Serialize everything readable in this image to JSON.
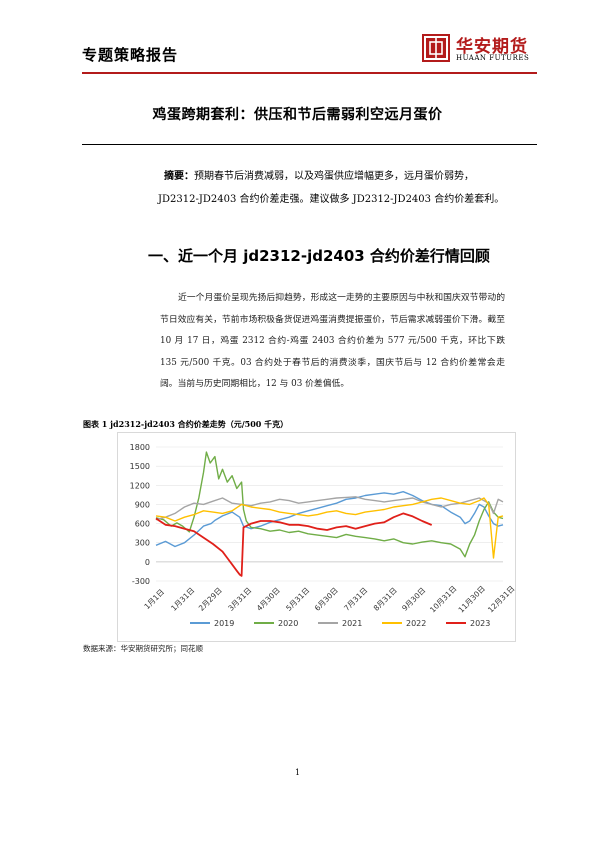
{
  "header": {
    "report_type": "专题策略报告",
    "logo_cn": "华安期货",
    "logo_en": "HUAAN FUTURES",
    "accent_color": "#b31b1b"
  },
  "title": "鸡蛋跨期套利：供压和节后需弱利空远月蛋价",
  "abstract": {
    "label": "摘要：",
    "line1": "预期春节后消费减弱，以及鸡蛋供应增幅更多，远月蛋价弱势，",
    "line2": "JD2312-JD2403 合约价差走强。建议做多 JD2312-JD2403 合约价差套利。"
  },
  "section1": {
    "heading": "一、近一个月 jd2312-jd2403 合约价差行情回顾",
    "paragraph": "近一个月蛋价呈现先扬后抑趋势，形成这一走势的主要原因与中秋和国庆双节带动的节日效应有关，节前市场积极备货促进鸡蛋消费提振蛋价，节后需求减弱蛋价下滑。截至 10 月 17 日，鸡蛋 2312 合约-鸡蛋 2403 合约价差为 577 元/500 千克，环比下跌 135 元/500 千克。03 合约处于春节后的消费淡季，国庆节后与 12 合约价差常会走阔。当前与历史同期相比，12 与 03 价差偏低。"
  },
  "figure": {
    "caption": "图表 1 jd2312-jd2403 合约价差走势（元/500 千克）",
    "source": "数据来源：华安期货研究所；同花顺"
  },
  "chart_data": {
    "type": "line",
    "title": "",
    "xlabel": "",
    "ylabel": "",
    "ylim": [
      -300,
      1800
    ],
    "yticks": [
      -300,
      0,
      300,
      600,
      900,
      1200,
      1500,
      1800
    ],
    "xlim": [
      0,
      365
    ],
    "x_ticks": [
      {
        "label": "1月1日",
        "day": 0
      },
      {
        "label": "1月31日",
        "day": 30
      },
      {
        "label": "2月29日",
        "day": 59
      },
      {
        "label": "3月31日",
        "day": 90
      },
      {
        "label": "4月30日",
        "day": 120
      },
      {
        "label": "5月31日",
        "day": 151
      },
      {
        "label": "6月30日",
        "day": 181
      },
      {
        "label": "7月31日",
        "day": 212
      },
      {
        "label": "8月31日",
        "day": 243
      },
      {
        "label": "9月30日",
        "day": 273
      },
      {
        "label": "10月31日",
        "day": 304
      },
      {
        "label": "11月30日",
        "day": 334
      },
      {
        "label": "12月31日",
        "day": 365
      }
    ],
    "legend_position": "bottom",
    "series": [
      {
        "name": "2019",
        "color": "#5b9bd5",
        "points": [
          [
            0,
            260
          ],
          [
            10,
            320
          ],
          [
            20,
            240
          ],
          [
            30,
            300
          ],
          [
            40,
            420
          ],
          [
            50,
            560
          ],
          [
            58,
            600
          ],
          [
            62,
            650
          ],
          [
            70,
            720
          ],
          [
            80,
            780
          ],
          [
            88,
            700
          ],
          [
            92,
            560
          ],
          [
            100,
            520
          ],
          [
            110,
            560
          ],
          [
            120,
            620
          ],
          [
            130,
            660
          ],
          [
            140,
            700
          ],
          [
            150,
            760
          ],
          [
            160,
            800
          ],
          [
            170,
            840
          ],
          [
            180,
            880
          ],
          [
            190,
            920
          ],
          [
            200,
            980
          ],
          [
            210,
            1000
          ],
          [
            220,
            1040
          ],
          [
            230,
            1060
          ],
          [
            240,
            1080
          ],
          [
            250,
            1060
          ],
          [
            260,
            1100
          ],
          [
            270,
            1040
          ],
          [
            280,
            960
          ],
          [
            290,
            900
          ],
          [
            300,
            880
          ],
          [
            310,
            780
          ],
          [
            320,
            700
          ],
          [
            325,
            600
          ],
          [
            330,
            640
          ],
          [
            335,
            760
          ],
          [
            340,
            900
          ],
          [
            345,
            860
          ],
          [
            350,
            720
          ],
          [
            355,
            600
          ],
          [
            360,
            560
          ],
          [
            365,
            580
          ]
        ]
      },
      {
        "name": "2020",
        "color": "#70ad47",
        "points": [
          [
            0,
            690
          ],
          [
            8,
            660
          ],
          [
            16,
            560
          ],
          [
            22,
            610
          ],
          [
            28,
            560
          ],
          [
            35,
            470
          ],
          [
            40,
            700
          ],
          [
            45,
            1000
          ],
          [
            50,
            1400
          ],
          [
            53,
            1720
          ],
          [
            57,
            1550
          ],
          [
            62,
            1650
          ],
          [
            66,
            1300
          ],
          [
            70,
            1450
          ],
          [
            75,
            1250
          ],
          [
            80,
            1350
          ],
          [
            85,
            1150
          ],
          [
            90,
            1250
          ],
          [
            92,
            820
          ],
          [
            95,
            640
          ],
          [
            100,
            540
          ],
          [
            110,
            520
          ],
          [
            120,
            480
          ],
          [
            130,
            500
          ],
          [
            140,
            460
          ],
          [
            150,
            480
          ],
          [
            160,
            440
          ],
          [
            170,
            420
          ],
          [
            180,
            400
          ],
          [
            190,
            380
          ],
          [
            200,
            430
          ],
          [
            210,
            400
          ],
          [
            220,
            380
          ],
          [
            230,
            360
          ],
          [
            240,
            330
          ],
          [
            250,
            360
          ],
          [
            260,
            300
          ],
          [
            270,
            280
          ],
          [
            280,
            310
          ],
          [
            290,
            330
          ],
          [
            300,
            300
          ],
          [
            310,
            280
          ],
          [
            320,
            200
          ],
          [
            325,
            80
          ],
          [
            330,
            280
          ],
          [
            335,
            420
          ],
          [
            340,
            640
          ],
          [
            345,
            820
          ],
          [
            350,
            940
          ],
          [
            355,
            780
          ],
          [
            360,
            700
          ],
          [
            365,
            680
          ]
        ]
      },
      {
        "name": "2021",
        "color": "#a5a5a5",
        "points": [
          [
            0,
            660
          ],
          [
            10,
            700
          ],
          [
            20,
            760
          ],
          [
            30,
            860
          ],
          [
            40,
            920
          ],
          [
            50,
            900
          ],
          [
            60,
            950
          ],
          [
            70,
            1000
          ],
          [
            80,
            920
          ],
          [
            90,
            900
          ],
          [
            100,
            880
          ],
          [
            110,
            920
          ],
          [
            120,
            940
          ],
          [
            130,
            980
          ],
          [
            140,
            960
          ],
          [
            150,
            920
          ],
          [
            160,
            940
          ],
          [
            170,
            960
          ],
          [
            180,
            980
          ],
          [
            190,
            1000
          ],
          [
            200,
            1010
          ],
          [
            210,
            1020
          ],
          [
            220,
            980
          ],
          [
            230,
            960
          ],
          [
            240,
            940
          ],
          [
            250,
            960
          ],
          [
            260,
            980
          ],
          [
            270,
            1000
          ],
          [
            280,
            940
          ],
          [
            290,
            900
          ],
          [
            300,
            860
          ],
          [
            310,
            900
          ],
          [
            320,
            920
          ],
          [
            330,
            960
          ],
          [
            340,
            1000
          ],
          [
            350,
            920
          ],
          [
            355,
            760
          ],
          [
            360,
            980
          ],
          [
            365,
            940
          ]
        ]
      },
      {
        "name": "2022",
        "color": "#ffc000",
        "points": [
          [
            0,
            720
          ],
          [
            10,
            700
          ],
          [
            20,
            640
          ],
          [
            30,
            700
          ],
          [
            40,
            740
          ],
          [
            50,
            800
          ],
          [
            60,
            780
          ],
          [
            70,
            760
          ],
          [
            80,
            800
          ],
          [
            90,
            900
          ],
          [
            100,
            860
          ],
          [
            110,
            840
          ],
          [
            120,
            820
          ],
          [
            130,
            780
          ],
          [
            140,
            760
          ],
          [
            150,
            740
          ],
          [
            160,
            720
          ],
          [
            170,
            740
          ],
          [
            180,
            780
          ],
          [
            190,
            800
          ],
          [
            200,
            760
          ],
          [
            210,
            740
          ],
          [
            220,
            780
          ],
          [
            230,
            800
          ],
          [
            240,
            820
          ],
          [
            250,
            860
          ],
          [
            260,
            880
          ],
          [
            270,
            900
          ],
          [
            280,
            940
          ],
          [
            290,
            980
          ],
          [
            300,
            1000
          ],
          [
            310,
            960
          ],
          [
            320,
            920
          ],
          [
            330,
            900
          ],
          [
            340,
            960
          ],
          [
            345,
            1000
          ],
          [
            350,
            900
          ],
          [
            355,
            60
          ],
          [
            360,
            700
          ],
          [
            365,
            720
          ]
        ]
      },
      {
        "name": "2023",
        "color": "#e0201a",
        "points": [
          [
            0,
            680
          ],
          [
            10,
            580
          ],
          [
            20,
            560
          ],
          [
            30,
            520
          ],
          [
            40,
            480
          ],
          [
            50,
            380
          ],
          [
            60,
            280
          ],
          [
            70,
            160
          ],
          [
            75,
            60
          ],
          [
            80,
            -40
          ],
          [
            85,
            -140
          ],
          [
            88,
            -200
          ],
          [
            90,
            -220
          ],
          [
            92,
            540
          ],
          [
            100,
            600
          ],
          [
            110,
            640
          ],
          [
            120,
            640
          ],
          [
            130,
            620
          ],
          [
            140,
            580
          ],
          [
            150,
            580
          ],
          [
            160,
            560
          ],
          [
            170,
            520
          ],
          [
            180,
            500
          ],
          [
            190,
            540
          ],
          [
            200,
            560
          ],
          [
            210,
            520
          ],
          [
            220,
            560
          ],
          [
            230,
            600
          ],
          [
            240,
            620
          ],
          [
            250,
            700
          ],
          [
            260,
            760
          ],
          [
            270,
            712
          ],
          [
            280,
            640
          ],
          [
            290,
            577
          ]
        ]
      }
    ]
  }
}
